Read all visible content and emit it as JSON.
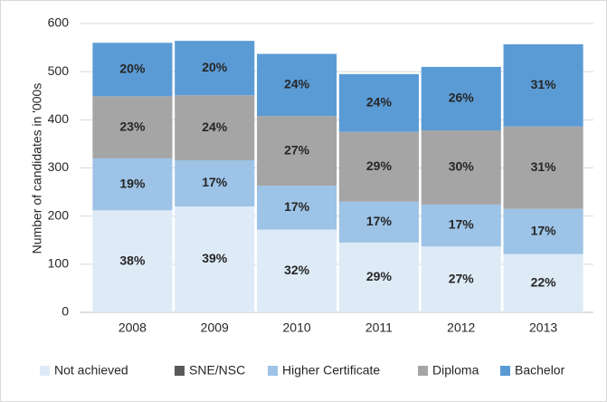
{
  "chart_data": {
    "type": "stacked-bar",
    "y_label": "Number of candidates in '000s",
    "categories": [
      "2008",
      "2009",
      "2010",
      "2011",
      "2012",
      "2013"
    ],
    "series": [
      {
        "name": "Not achieved",
        "color": "#deebf7",
        "values": [
          212,
          220,
          172,
          145,
          137,
          121
        ],
        "labels": [
          "38%",
          "39%",
          "32%",
          "29%",
          "27%",
          "22%"
        ]
      },
      {
        "name": "SNE/NSC",
        "color": "#595959",
        "values": [
          0,
          0,
          0,
          0,
          0,
          0
        ]
      },
      {
        "name": "Higher Certificate",
        "color": "#9dc3e6",
        "values": [
          108,
          96,
          91,
          85,
          87,
          94
        ],
        "labels": [
          "19%",
          "17%",
          "17%",
          "17%",
          "17%",
          "17%"
        ]
      },
      {
        "name": "Diploma",
        "color": "#a5a5a5",
        "values": [
          129,
          135,
          145,
          145,
          154,
          171
        ],
        "labels": [
          "23%",
          "24%",
          "27%",
          "29%",
          "30%",
          "31%"
        ]
      },
      {
        "name": "Bachelor",
        "color": "#5b9bd5",
        "values": [
          111,
          113,
          129,
          120,
          132,
          171
        ],
        "labels": [
          "20%",
          "20%",
          "24%",
          "24%",
          "26%",
          "31%"
        ]
      }
    ],
    "ylim": [
      0,
      600
    ],
    "yticks": [
      0,
      100,
      200,
      300,
      400,
      500,
      600
    ],
    "grid": true,
    "legend": "bottom"
  }
}
